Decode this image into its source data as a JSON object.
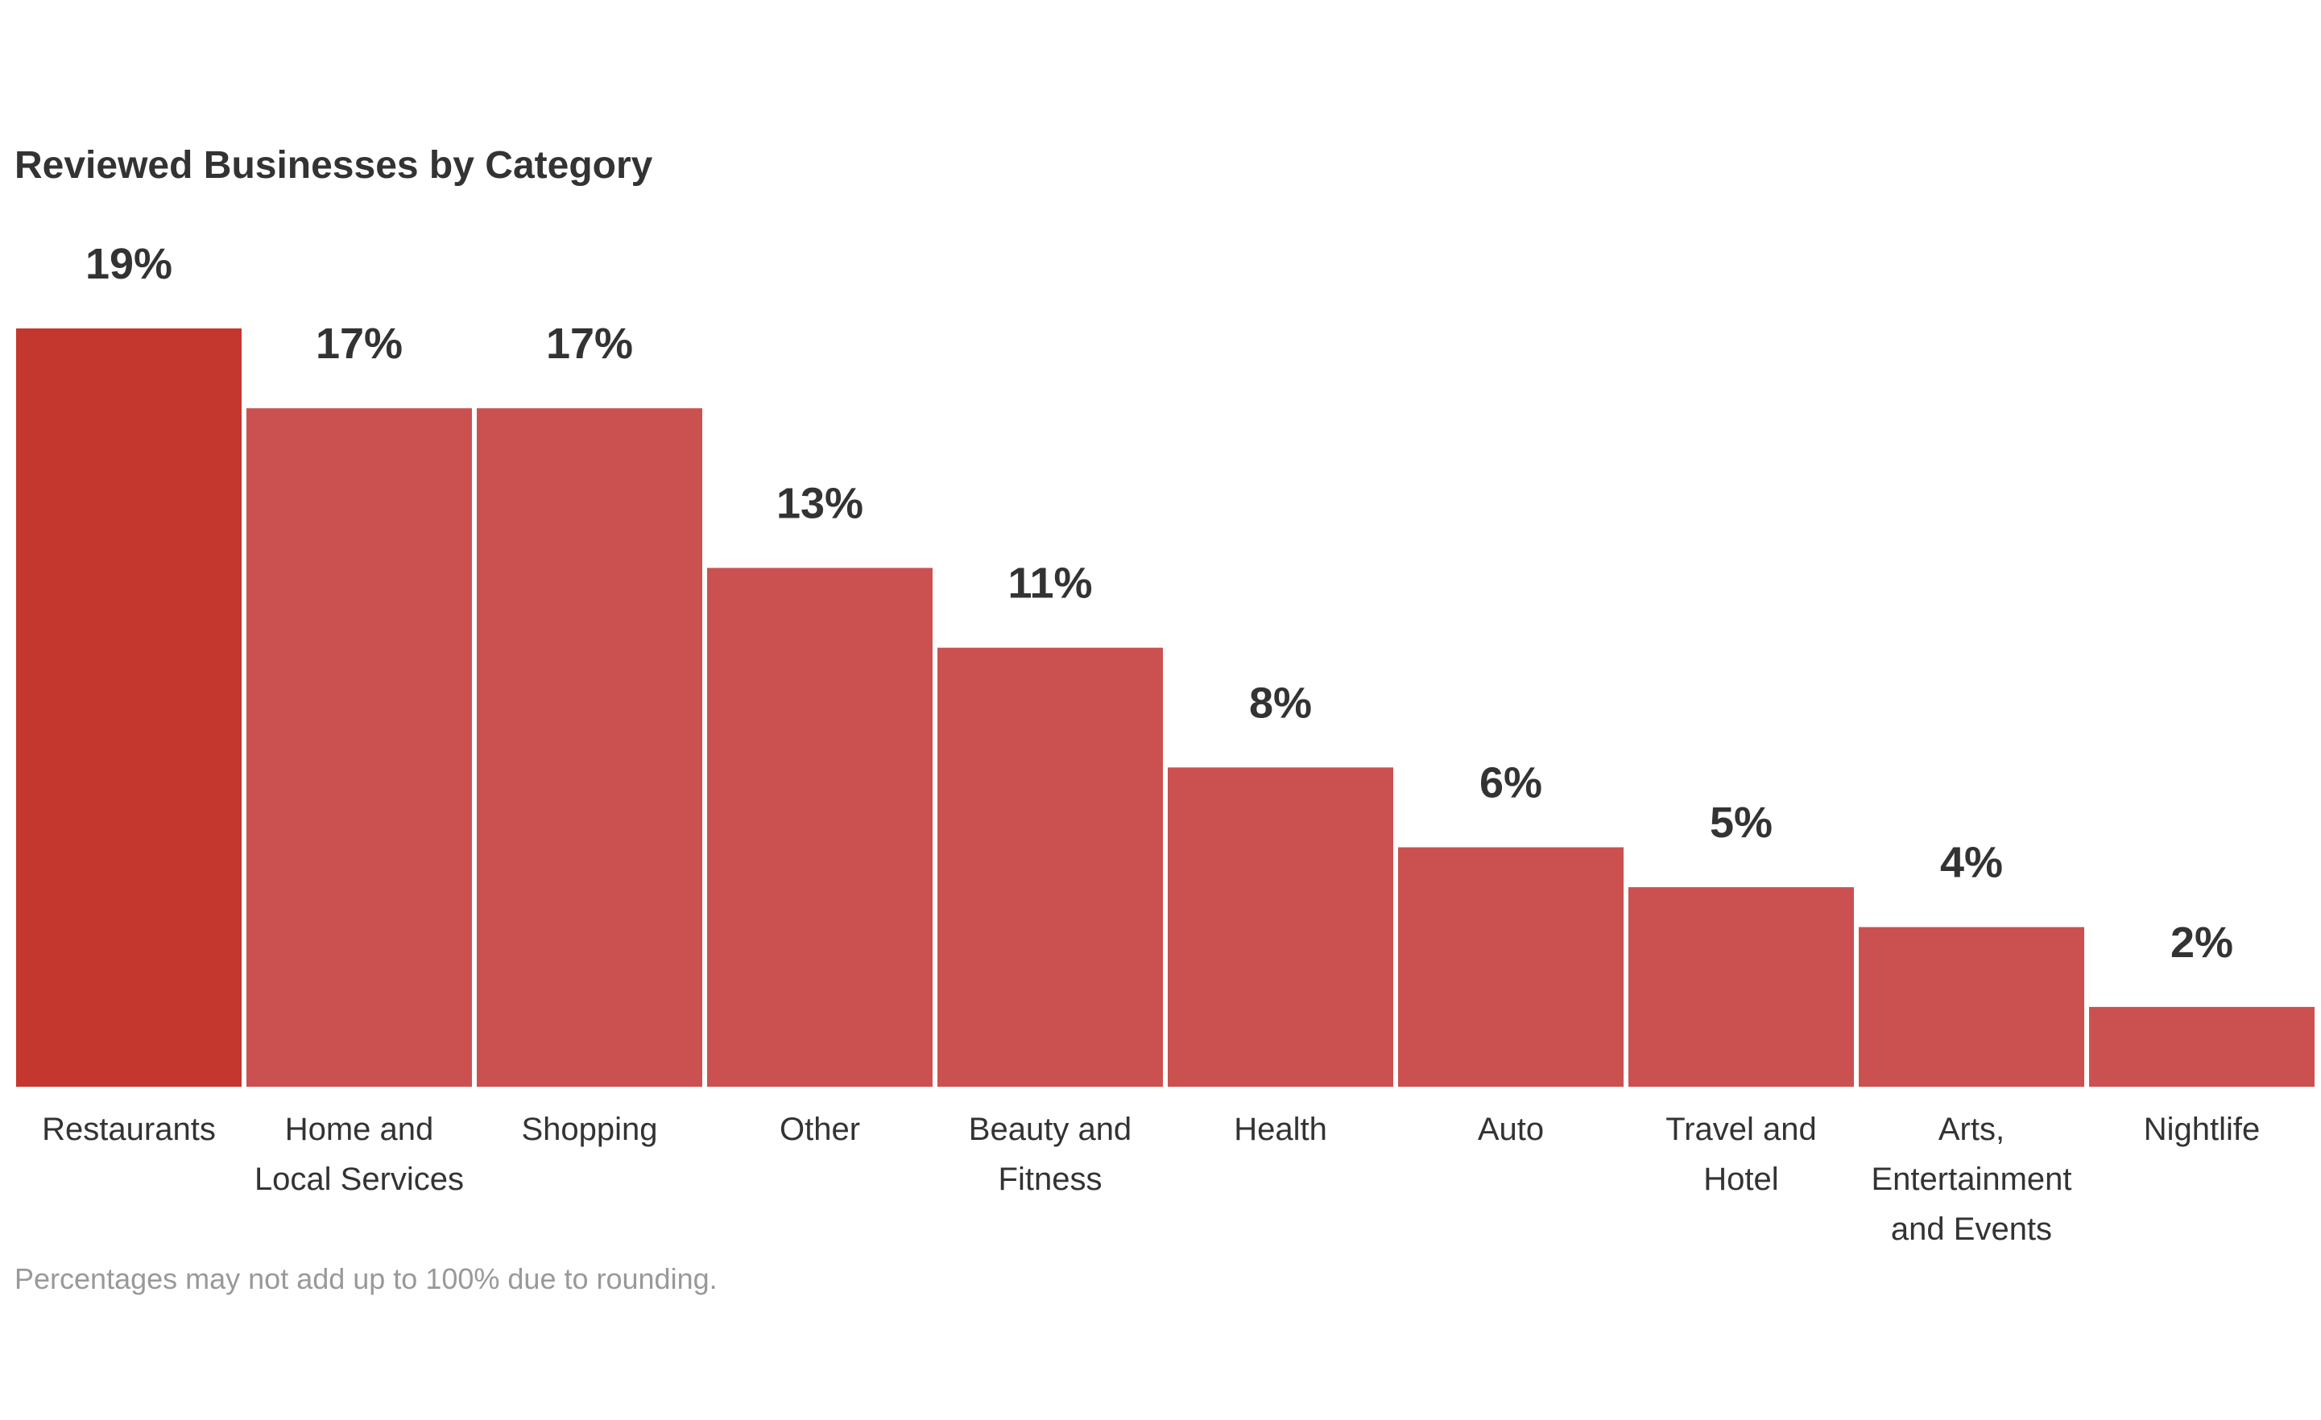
{
  "chart_data": {
    "type": "bar",
    "title": "Reviewed Businesses by Category",
    "footnote": "Percentages may not add up to 100% due to rounding.",
    "categories": [
      "Restaurants",
      "Home and Local Services",
      "Shopping",
      "Other",
      "Beauty and Fitness",
      "Health",
      "Auto",
      "Travel and Hotel",
      "Arts, Entertainment and Events",
      "Nightlife"
    ],
    "category_lines": [
      [
        "Restaurants"
      ],
      [
        "Home and",
        "Local Services"
      ],
      [
        "Shopping"
      ],
      [
        "Other"
      ],
      [
        "Beauty and",
        "Fitness"
      ],
      [
        "Health"
      ],
      [
        "Auto"
      ],
      [
        "Travel and",
        "Hotel"
      ],
      [
        "Arts,",
        "Entertainment",
        "and Events"
      ],
      [
        "Nightlife"
      ]
    ],
    "values": [
      19,
      17,
      17,
      13,
      11,
      8,
      6,
      5,
      4,
      2
    ],
    "value_labels": [
      "19%",
      "17%",
      "17%",
      "13%",
      "11%",
      "8%",
      "6%",
      "5%",
      "4%",
      "2%"
    ],
    "unit": "%",
    "ylim": [
      0,
      19
    ],
    "grid": false,
    "legend": "none",
    "colors": {
      "highlight": "#c4372e",
      "bar": "#cb5150",
      "label": "#333333",
      "footnote": "#999999"
    },
    "highlight_index": 0
  }
}
